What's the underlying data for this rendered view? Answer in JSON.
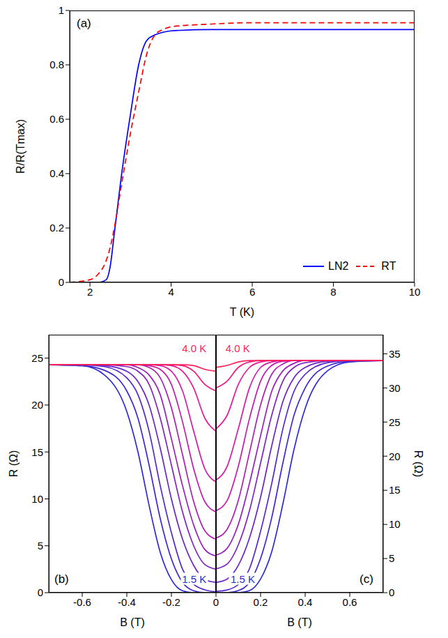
{
  "chart_data": [
    {
      "type": "line",
      "title": "(a)",
      "x_label": "T (K)",
      "y_label": "R/R(Tmax)",
      "x": [
        1.5,
        2,
        2.2,
        2.4,
        2.5,
        2.6,
        2.8,
        3,
        3.2,
        3.4,
        3.6,
        3.8,
        4,
        5,
        6,
        8,
        10
      ],
      "xlim": [
        1.5,
        10
      ],
      "xticks": [
        2,
        4,
        6,
        8,
        10
      ],
      "ylim": [
        0,
        1
      ],
      "yticks": [
        0,
        0.2,
        0.4,
        0.6,
        0.8,
        1
      ],
      "legend": "lower right",
      "series": [
        {
          "name": "LN2",
          "color": "#0000ff",
          "line_style": "solid",
          "values": [
            0,
            0,
            0,
            0.01,
            0.06,
            0.18,
            0.42,
            0.62,
            0.8,
            0.89,
            0.91,
            0.92,
            0.925,
            0.93,
            0.93,
            0.93,
            0.93
          ]
        },
        {
          "name": "RT",
          "color": "#ff0000",
          "line_style": "dashed",
          "values": [
            0,
            0.01,
            0.03,
            0.08,
            0.13,
            0.2,
            0.38,
            0.55,
            0.7,
            0.84,
            0.91,
            0.93,
            0.94,
            0.95,
            0.955,
            0.955,
            0.955
          ]
        }
      ]
    },
    {
      "type": "line",
      "title": "(b)",
      "x_label": "B (T)",
      "y_label": "R (Ω)",
      "x": [
        -0.75,
        -0.6,
        -0.5,
        -0.4,
        -0.35,
        -0.3,
        -0.25,
        -0.2,
        -0.15,
        -0.1,
        -0.05,
        0
      ],
      "xlim": [
        -0.75,
        0
      ],
      "xticks": [
        -0.6,
        -0.4,
        -0.2
      ],
      "ylim": [
        0,
        27.5
      ],
      "yticks": [
        0,
        5,
        10,
        15,
        20,
        25
      ],
      "annotations": [
        {
          "text": "4.0 K",
          "color": "#ff1f5a"
        },
        {
          "text": "1.5 K",
          "color": "#2b2bd9"
        }
      ],
      "series": [
        {
          "color": "#2b2bd9",
          "values": [
            24.3,
            24.2,
            23.2,
            19.3,
            15,
            9.3,
            4.3,
            1.4,
            0.2,
            0,
            0,
            0
          ]
        },
        {
          "color": "#3f28d2",
          "values": [
            24.3,
            24.2,
            23.7,
            21.5,
            18.6,
            13.6,
            7.9,
            3.6,
            1.1,
            0.2,
            0,
            0
          ]
        },
        {
          "color": "#5626cc",
          "values": [
            24.3,
            24.3,
            24.1,
            22.9,
            21.1,
            17.2,
            11.4,
            6.4,
            2.5,
            0.9,
            0.3,
            0.1
          ]
        },
        {
          "color": "#6c24c6",
          "values": [
            24.3,
            24.3,
            24.2,
            23.6,
            22.5,
            20,
            15.4,
            10,
            5.7,
            2.9,
            1.4,
            1.1
          ]
        },
        {
          "color": "#8222c0",
          "values": [
            24.3,
            24.3,
            24.3,
            24.1,
            23.6,
            22.2,
            18.6,
            13.6,
            8.6,
            5,
            3,
            2.5
          ]
        },
        {
          "color": "#9820ba",
          "values": [
            24.3,
            24.3,
            24.3,
            24.3,
            24,
            23.2,
            21.1,
            16.4,
            11.4,
            7.2,
            4.6,
            3.9
          ]
        },
        {
          "color": "#ae1eb4",
          "values": [
            24.3,
            24.3,
            24.3,
            24.3,
            24.3,
            24,
            22.9,
            19.7,
            14.7,
            9.7,
            6.6,
            5.7
          ]
        },
        {
          "color": "#c41cae",
          "values": [
            24.3,
            24.3,
            24.3,
            24.3,
            24.3,
            24.2,
            23.8,
            22.2,
            18.2,
            13.2,
            9.7,
            8.6
          ]
        },
        {
          "color": "#d81aa6",
          "values": [
            24.3,
            24.3,
            24.3,
            24.3,
            24.3,
            24.3,
            24.2,
            23.6,
            21.5,
            17.2,
            13.2,
            11.8
          ]
        },
        {
          "color": "#e8189a",
          "values": [
            24.3,
            24.3,
            24.3,
            24.3,
            24.3,
            24.3,
            24.3,
            24.2,
            23.6,
            21.8,
            18.6,
            17.2
          ]
        },
        {
          "color": "#f4187c",
          "values": [
            24.3,
            24.3,
            24.3,
            24.3,
            24.3,
            24.3,
            24.3,
            24.3,
            24.2,
            23.6,
            22.2,
            21.5
          ]
        },
        {
          "color": "#ff1f5a",
          "values": [
            24.3,
            24.3,
            24.3,
            24.3,
            24.3,
            24.3,
            24.3,
            24.3,
            24.3,
            24.2,
            23.8,
            23.6
          ]
        }
      ]
    },
    {
      "type": "line",
      "title": "(c)",
      "x_label": "B (T)",
      "y_label": "R (Ω)",
      "x": [
        0,
        0.05,
        0.1,
        0.15,
        0.2,
        0.25,
        0.3,
        0.35,
        0.4,
        0.5,
        0.6,
        0.75
      ],
      "xlim": [
        0,
        0.75
      ],
      "xticks": [
        0,
        0.2,
        0.4,
        0.6
      ],
      "y2lim": [
        0,
        37.8
      ],
      "y2ticks": [
        0,
        5,
        10,
        15,
        20,
        25,
        30,
        35
      ],
      "annotations": [
        {
          "text": "4.0 K",
          "color": "#ff1f5a"
        },
        {
          "text": "1.5 K",
          "color": "#2b2bd9"
        }
      ],
      "series": [
        {
          "axis": "y2",
          "color": "#2b2bd9",
          "values": [
            0,
            0,
            0,
            0.3,
            2,
            6,
            13,
            21,
            27,
            32.5,
            33.8,
            34
          ]
        },
        {
          "axis": "y2",
          "color": "#3f28d2",
          "values": [
            0,
            0,
            0.3,
            1.5,
            5,
            11,
            19,
            26,
            30,
            33.2,
            33.9,
            34
          ]
        },
        {
          "axis": "y2",
          "color": "#5626cc",
          "values": [
            0.2,
            0.4,
            1.2,
            3.5,
            9,
            16,
            24,
            29.5,
            32,
            33.7,
            34,
            34
          ]
        },
        {
          "axis": "y2",
          "color": "#6c24c6",
          "values": [
            1.5,
            2,
            4,
            8,
            14,
            21.5,
            28,
            31.5,
            33,
            33.9,
            34,
            34
          ]
        },
        {
          "axis": "y2",
          "color": "#8222c0",
          "values": [
            3.5,
            4.2,
            7,
            12,
            19,
            26,
            31,
            33,
            33.7,
            34,
            34,
            34
          ]
        },
        {
          "axis": "y2",
          "color": "#9820ba",
          "values": [
            5.5,
            6.5,
            10,
            16,
            23,
            29.5,
            32.5,
            33.6,
            34,
            34,
            34,
            34
          ]
        },
        {
          "axis": "y2",
          "color": "#ae1eb4",
          "values": [
            8,
            9.3,
            13.5,
            20.5,
            27.5,
            32,
            33.5,
            34,
            34,
            34,
            34,
            34
          ]
        },
        {
          "axis": "y2",
          "color": "#c41cae",
          "values": [
            12,
            13.5,
            18.5,
            25.5,
            31,
            33.3,
            33.9,
            34,
            34,
            34,
            34,
            34
          ]
        },
        {
          "axis": "y2",
          "color": "#d81aa6",
          "values": [
            16.5,
            18.5,
            24,
            30,
            33,
            33.8,
            34,
            34,
            34,
            34,
            34,
            34
          ]
        },
        {
          "axis": "y2",
          "color": "#e8189a",
          "values": [
            24,
            26,
            30.5,
            33,
            33.8,
            34,
            34,
            34,
            34,
            34,
            34,
            34
          ]
        },
        {
          "axis": "y2",
          "color": "#f4187c",
          "values": [
            30,
            31,
            33,
            33.8,
            34,
            34,
            34,
            34,
            34,
            34,
            34,
            34
          ]
        },
        {
          "axis": "y2",
          "color": "#ff1f5a",
          "values": [
            33,
            33.3,
            33.8,
            34,
            34,
            34,
            34,
            34,
            34,
            34,
            34,
            34
          ]
        }
      ]
    }
  ]
}
